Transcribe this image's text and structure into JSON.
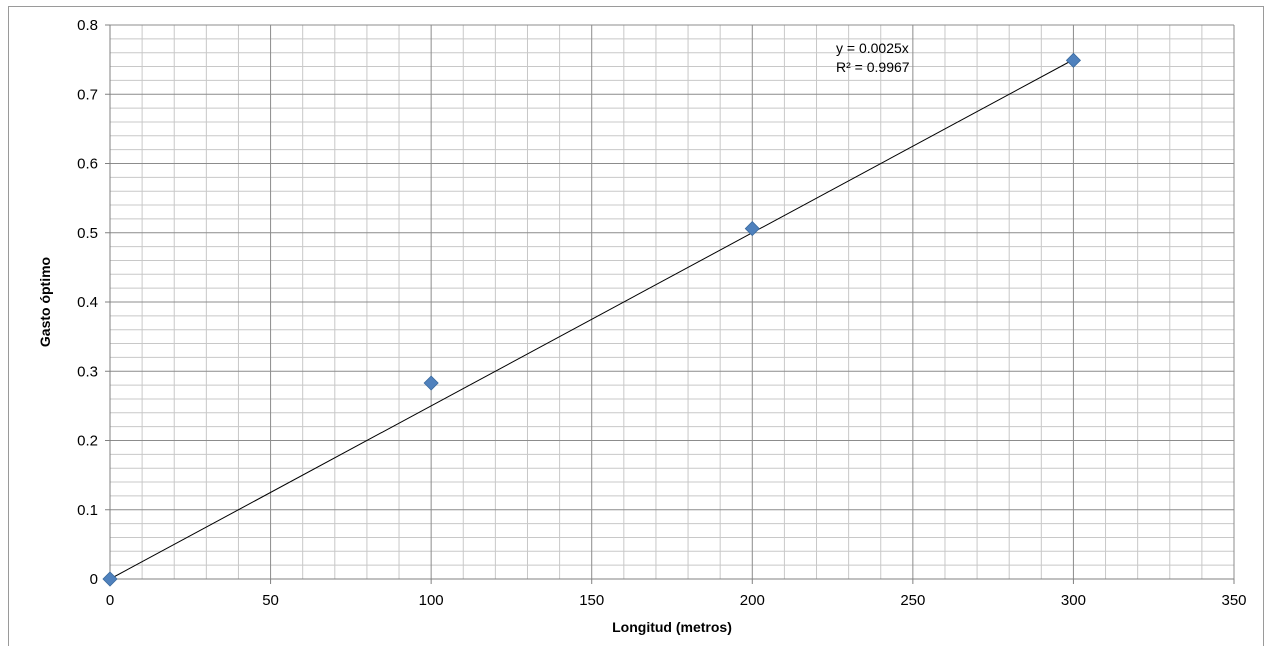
{
  "chart_data": {
    "type": "scatter",
    "title": "",
    "xlabel": "Longitud (metros)",
    "ylabel": "Gasto óptimo",
    "xlim": [
      0,
      350
    ],
    "ylim": [
      0,
      0.8
    ],
    "x_ticks": [
      0,
      50,
      100,
      150,
      200,
      250,
      300,
      350
    ],
    "y_ticks": [
      0,
      0.1,
      0.2,
      0.3,
      0.4,
      0.5,
      0.6,
      0.7,
      0.8
    ],
    "x_tick_labels": [
      "0",
      "50",
      "100",
      "150",
      "200",
      "250",
      "300",
      "350"
    ],
    "y_tick_labels": [
      "0",
      "0.1",
      "0.2",
      "0.3",
      "0.4",
      "0.5",
      "0.6",
      "0.7",
      "0.8"
    ],
    "grid": true,
    "legend": "none",
    "series": [
      {
        "x": [
          0,
          100,
          200,
          300
        ],
        "y": [
          0,
          0.283,
          0.506,
          0.749
        ],
        "marker": "diamond",
        "color": "#4f81bd"
      }
    ],
    "trendline": {
      "type": "linear",
      "slope": 0.0025,
      "intercept": 0,
      "x_range": [
        0,
        300
      ],
      "color": "#000000"
    },
    "annotations": {
      "equation": "y = 0.0025x",
      "r_squared": "R² = 0.9967"
    }
  }
}
